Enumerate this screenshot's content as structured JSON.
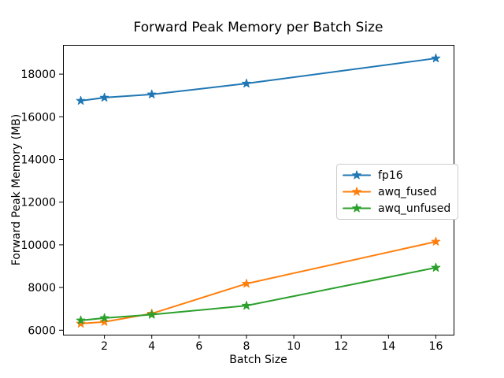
{
  "figure": {
    "background": "#ffffff",
    "axes_edge_color": "#000000",
    "legend_frame_color": "#cccccc"
  },
  "chart_data": {
    "type": "line",
    "title": "Forward Peak Memory per Batch Size",
    "xlabel": "Batch Size",
    "ylabel": "Forward Peak Memory (MB)",
    "x": [
      1,
      2,
      4,
      8,
      16
    ],
    "series": [
      {
        "name": "fp16",
        "color": "#1f77b4",
        "marker": "star",
        "values": [
          16750,
          16900,
          17050,
          17560,
          18740
        ]
      },
      {
        "name": "awq_fused",
        "color": "#ff7f0e",
        "marker": "star",
        "values": [
          6310,
          6390,
          6780,
          8180,
          10150
        ]
      },
      {
        "name": "awq_unfused",
        "color": "#2ca02c",
        "marker": "star",
        "values": [
          6460,
          6570,
          6730,
          7150,
          8930
        ]
      }
    ],
    "xlim": [
      0.25,
      16.75
    ],
    "ylim": [
      5790,
      19370
    ],
    "xticks": [
      2,
      4,
      6,
      8,
      10,
      12,
      14,
      16
    ],
    "yticks": [
      6000,
      8000,
      10000,
      12000,
      14000,
      16000,
      18000
    ],
    "grid": false,
    "legend_position": "center-right"
  }
}
